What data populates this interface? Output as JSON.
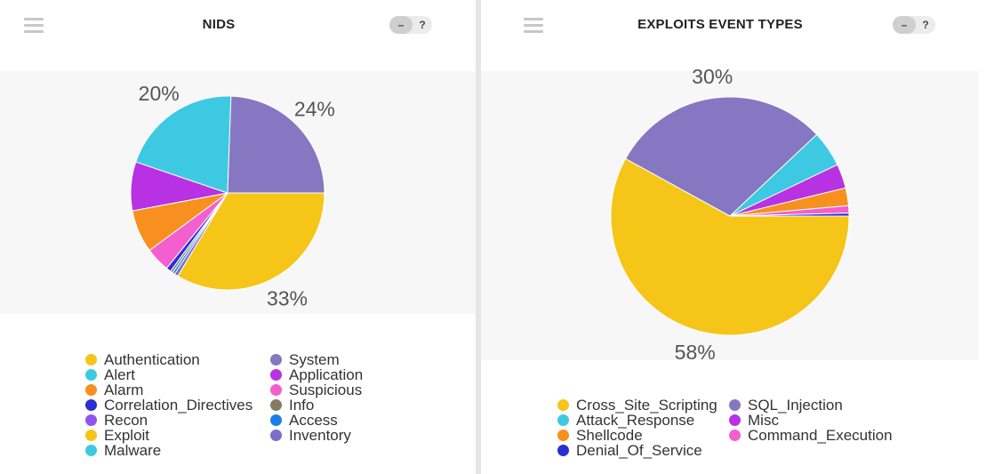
{
  "panels": [
    {
      "title": "NIDS",
      "controls": {
        "minus": "–",
        "help": "?"
      }
    },
    {
      "title": "EXPLOITS EVENT TYPES",
      "controls": {
        "minus": "–",
        "help": "?"
      }
    }
  ],
  "chart_data": [
    {
      "type": "pie",
      "title": "NIDS",
      "slices": [
        {
          "name": "Exploit",
          "value": 33,
          "color": "#f5c518",
          "label": "33%"
        },
        {
          "name": "Inventory",
          "value": 0.6,
          "color": "#7b6fc7",
          "label": ""
        },
        {
          "name": "Access",
          "value": 0.4,
          "color": "#1e7ee8",
          "label": ""
        },
        {
          "name": "Info",
          "value": 0.4,
          "color": "#857a63",
          "label": ""
        },
        {
          "name": "Correlation_Directives",
          "value": 0.8,
          "color": "#2a2fd1",
          "label": ""
        },
        {
          "name": "Suspicious",
          "value": 4,
          "color": "#f45fcf",
          "label": ""
        },
        {
          "name": "Alarm",
          "value": 7,
          "color": "#f7901e",
          "label": ""
        },
        {
          "name": "Application",
          "value": 8,
          "color": "#b832e3",
          "label": ""
        },
        {
          "name": "Alert",
          "value": 20,
          "color": "#3ec9e3",
          "label": "20%"
        },
        {
          "name": "System",
          "value": 24,
          "color": "#8577c2",
          "label": "24%"
        }
      ],
      "legend": {
        "placement": "bottom",
        "columns": [
          [
            {
              "name": "Authentication",
              "color": "#f5c518"
            },
            {
              "name": "Alert",
              "color": "#3ec9e3"
            },
            {
              "name": "Alarm",
              "color": "#f7901e"
            },
            {
              "name": "Correlation_Directives",
              "color": "#2a2fd1"
            },
            {
              "name": "Recon",
              "color": "#9254f0"
            },
            {
              "name": "Exploit",
              "color": "#f5c518"
            },
            {
              "name": "Malware",
              "color": "#3ec9e3"
            }
          ],
          [
            {
              "name": "System",
              "color": "#8577c2"
            },
            {
              "name": "Application",
              "color": "#b832e3"
            },
            {
              "name": "Suspicious",
              "color": "#f45fcf"
            },
            {
              "name": "Info",
              "color": "#857a63"
            },
            {
              "name": "Access",
              "color": "#1e7ee8"
            },
            {
              "name": "Inventory",
              "color": "#7b6fc7"
            }
          ]
        ]
      }
    },
    {
      "type": "pie",
      "title": "EXPLOITS EVENT TYPES",
      "slices": [
        {
          "name": "Cross_Site_Scripting",
          "value": 58,
          "color": "#f5c518",
          "label": "58%"
        },
        {
          "name": "SQL_Injection",
          "value": 30,
          "color": "#8577c2",
          "label": "30%"
        },
        {
          "name": "Attack_Response",
          "value": 4.9,
          "color": "#3ec9e3",
          "label": ""
        },
        {
          "name": "Misc",
          "value": 3.3,
          "color": "#b832e3",
          "label": ""
        },
        {
          "name": "Shellcode",
          "value": 2.4,
          "color": "#f7901e",
          "label": ""
        },
        {
          "name": "Command_Execution",
          "value": 1.0,
          "color": "#f45fcf",
          "label": ""
        },
        {
          "name": "Denial_Of_Service",
          "value": 0.4,
          "color": "#2a2fd1",
          "label": ""
        }
      ],
      "legend": {
        "placement": "bottom",
        "columns": [
          [
            {
              "name": "Cross_Site_Scripting",
              "color": "#f5c518"
            },
            {
              "name": "Attack_Response",
              "color": "#3ec9e3"
            },
            {
              "name": "Shellcode",
              "color": "#f7901e"
            },
            {
              "name": "Denial_Of_Service",
              "color": "#2a2fd1"
            }
          ],
          [
            {
              "name": "SQL_Injection",
              "color": "#8577c2"
            },
            {
              "name": "Misc",
              "color": "#b832e3"
            },
            {
              "name": "Command_Execution",
              "color": "#f45fcf"
            }
          ]
        ]
      }
    }
  ]
}
